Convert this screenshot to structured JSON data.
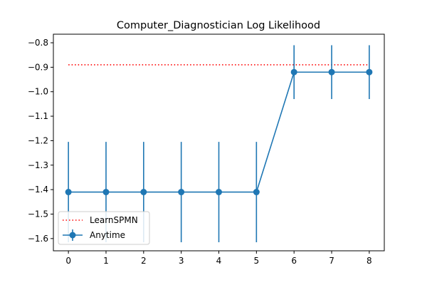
{
  "chart_data": {
    "type": "line",
    "title": "Computer_Diagnostician Log Likelihood",
    "xlabel": "",
    "ylabel": "",
    "xlim": [
      -0.4,
      8.4
    ],
    "ylim": [
      -1.65,
      -0.765
    ],
    "x_ticks": [
      0,
      1,
      2,
      3,
      4,
      5,
      6,
      7,
      8
    ],
    "y_ticks": [
      -1.6,
      -1.5,
      -1.4,
      -1.3,
      -1.2,
      -1.1,
      -1.0,
      -0.9,
      -0.8
    ],
    "y_tick_labels": [
      "−1.6",
      "−1.5",
      "−1.4",
      "−1.3",
      "−1.2",
      "−1.1",
      "−1.0",
      "−0.9",
      "−0.8"
    ],
    "grid": false,
    "legend_position": "lower-left",
    "series": [
      {
        "name": "LearnSPMN",
        "style": "dotted",
        "color": "#ff0000",
        "x": [
          0,
          8
        ],
        "values": [
          -0.89,
          -0.89
        ]
      },
      {
        "name": "Anytime",
        "style": "line-marker-errorbar",
        "color": "#1f77b4",
        "x": [
          0,
          1,
          2,
          3,
          4,
          5,
          6,
          7,
          8
        ],
        "values": [
          -1.41,
          -1.41,
          -1.41,
          -1.41,
          -1.41,
          -1.41,
          -0.92,
          -0.92,
          -0.92
        ],
        "error": [
          0.205,
          0.205,
          0.205,
          0.205,
          0.205,
          0.205,
          0.11,
          0.11,
          0.11
        ]
      }
    ]
  }
}
